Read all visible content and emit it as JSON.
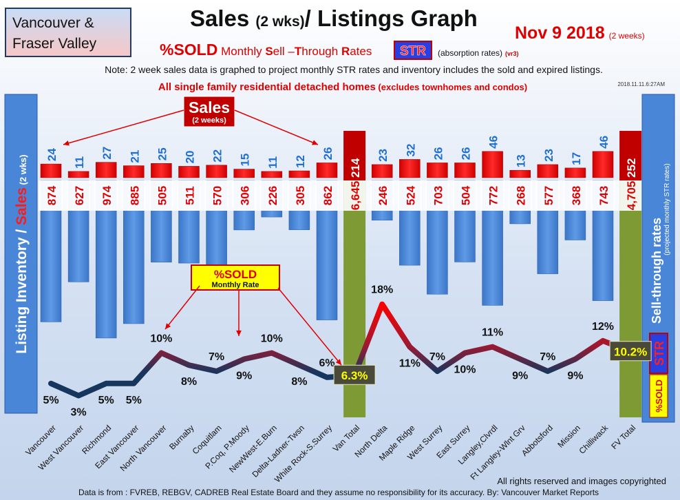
{
  "header": {
    "region_line1": "Vancouver &",
    "region_line2": "Fraser Valley",
    "title_a": "Sales ",
    "title_b": "(2 wks)",
    "title_c": "/ Listings Graph",
    "date_main": "Nov 9 2018",
    "date_sub": "(2 weeks)",
    "subtitle_pct": "%SOLD",
    "subtitle_mid": " Monthly ",
    "subtitle_S": "S",
    "subtitle_ell": "ell ",
    "subtitle_dash": "–",
    "subtitle_T": "T",
    "subtitle_hrough": "hrough ",
    "subtitle_R": "R",
    "subtitle_ates": "ates",
    "str_badge": "STR",
    "absorption": "(absorption rates)",
    "version": "(vr3)",
    "note": "Note: 2 week sales data is graphed to project monthly STR rates and inventory includes the sold and expired listings.",
    "scope_main": "All single family residential detached homes",
    "scope_sub": " (excludes townhomes and condos)",
    "timestamp": "2018.11.11.6:27AM"
  },
  "left_panel": {
    "label_inventory": "Listing Inventory / ",
    "label_sales": "Sales",
    "label_period": " (2 wks)"
  },
  "right_panel": {
    "label_str": "Sell-through rates",
    "label_projected": "(projected monthly STR rates)",
    "str_badge": "STR",
    "pct_badge": "%SOLD"
  },
  "callouts": {
    "sales_title": "Sales",
    "sales_sub": "(2 weeks)",
    "sold_title": "%SOLD",
    "sold_sub": "Monthly Rate"
  },
  "footer": {
    "rights": "All rights reserved and  images copyrighted",
    "source": "Data is from : FVREB, REBGV, CADREB Real Estate Board and they assume no responsibility for its accuracy. By: Vancouver Market Reports"
  },
  "colors": {
    "inventory_bar": "#4a86d8",
    "sales_bar": "#ee1111",
    "total_bar": "#7d9a35",
    "total_sales_bar": "#c00000",
    "line_low": "#17365d",
    "line_high": "#ff0000",
    "sales_label": "#1f6fd0",
    "listing_label": "#e00000",
    "panel": "#4a86d8"
  },
  "chart_data": {
    "type": "bar",
    "categories": [
      "Vancouver",
      "West Vancouver",
      "Richmond",
      "East Vancouver",
      "North Vancouver",
      "Burnaby",
      "Coquitlam",
      "P.Coq, P.Moody",
      "NewWest-E.Burn",
      "Delta-Ladner-Twsn",
      "White Rock-S.Surrey",
      "Van Total",
      "North Delta",
      "Maple Ridge",
      "West Surrey",
      "East Surrey",
      "Langley,Clvrdl",
      "Ft Langley-Wlnt Grv",
      "Abbotsford",
      "Mission",
      "Chilliwack",
      "FV Total"
    ],
    "series": [
      {
        "name": "Listing Inventory",
        "values": [
          874,
          627,
          974,
          885,
          505,
          511,
          570,
          306,
          226,
          305,
          862,
          6645,
          246,
          524,
          703,
          504,
          772,
          268,
          577,
          368,
          743,
          4705
        ],
        "labels": [
          "874",
          "627",
          "974",
          "885",
          "505",
          "511",
          "570",
          "306",
          "226",
          "305",
          "862",
          "6,645",
          "246",
          "524",
          "703",
          "504",
          "772",
          "268",
          "577",
          "368",
          "743",
          "4,705"
        ]
      },
      {
        "name": "Sales",
        "values": [
          24,
          11,
          27,
          21,
          25,
          20,
          22,
          15,
          11,
          12,
          26,
          214,
          23,
          32,
          26,
          26,
          46,
          13,
          23,
          17,
          46,
          252
        ]
      },
      {
        "name": "%SOLD Monthly Rate",
        "values": [
          5,
          3,
          5,
          5,
          10,
          8,
          7,
          9,
          10,
          8,
          6,
          6.3,
          18,
          11,
          7,
          10,
          11,
          9,
          7,
          9,
          12,
          10.2
        ],
        "labels": [
          "5%",
          "3%",
          "5%",
          "5%",
          "10%",
          "8%",
          "7%",
          "9%",
          "10%",
          "8%",
          "6%",
          "6.3%",
          "18%",
          "11%",
          "7%",
          "10%",
          "11%",
          "9%",
          "7%",
          "9%",
          "12%",
          "10.2%"
        ]
      }
    ],
    "totals": [
      "Van Total",
      "FV Total"
    ]
  }
}
